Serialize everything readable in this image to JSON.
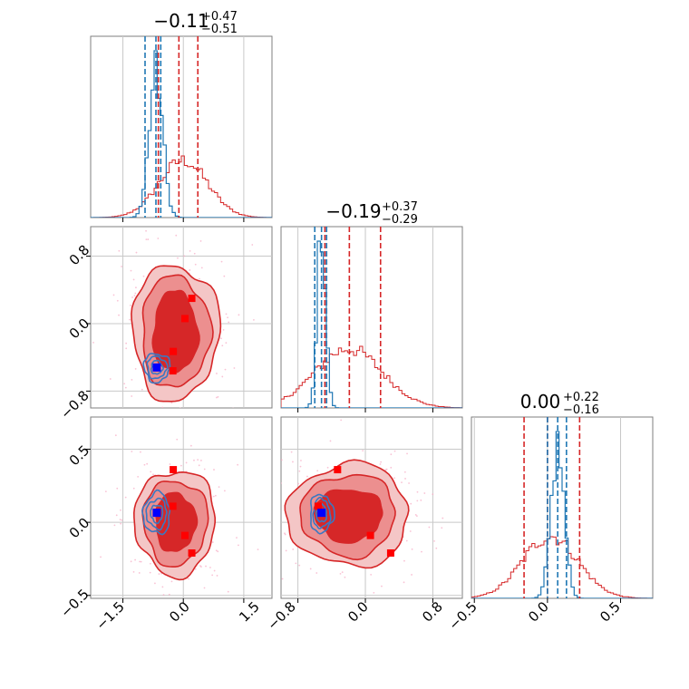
{
  "figure": {
    "titles": {
      "p0": {
        "main": "−0.11",
        "plus": "+0.47",
        "minus": "−0.51"
      },
      "p1": {
        "main": "−0.19",
        "plus": "+0.37",
        "minus": "−0.29"
      },
      "p2": {
        "main": "0.00",
        "plus": "+0.22",
        "minus": "−0.16"
      }
    },
    "ticks": {
      "x0": [
        "−1.5",
        "0.0",
        "1.5"
      ],
      "x1": [
        "−0.8",
        "0.0",
        "0.8"
      ],
      "x2": [
        "−0.5",
        "0.0",
        "0.5"
      ],
      "y1": [
        "0.8",
        "0.0",
        "−0.8"
      ],
      "y2": [
        "0.5",
        "0.0",
        "−0.5"
      ]
    }
  },
  "chart_data": {
    "type": "corner",
    "series": [
      {
        "name": "",
        "color": "#d62728",
        "style": "filled contours + step histogram"
      },
      {
        "name": "",
        "color": "#1f77b4",
        "style": "line contours + step histogram"
      }
    ],
    "parameters": [
      {
        "range": [
          -2.3,
          2.2
        ],
        "ticks": [
          -1.5,
          0.0,
          1.5
        ]
      },
      {
        "range": [
          -1.0,
          1.15
        ],
        "ticks": [
          -0.8,
          0.0,
          0.8
        ]
      },
      {
        "range": [
          -0.52,
          0.72
        ],
        "ticks": [
          -0.5,
          0.0,
          0.5
        ]
      }
    ],
    "marginals": [
      {
        "parameter": 0,
        "red": {
          "median": -0.11,
          "plus": 0.47,
          "minus": 0.51,
          "quantiles": [
            -0.62,
            -0.11,
            0.36
          ],
          "mean": 0.0,
          "sd": 0.6
        },
        "blue": {
          "quantiles": [
            -0.95,
            -0.68,
            -0.56
          ],
          "mean": -0.68,
          "sd": 0.17
        }
      },
      {
        "parameter": 1,
        "red": {
          "median": -0.19,
          "plus": 0.37,
          "minus": 0.29,
          "quantiles": [
            -0.48,
            -0.19,
            0.18
          ],
          "mean": -0.2,
          "sd": 0.4
        },
        "blue": {
          "quantiles": [
            -0.6,
            -0.52,
            -0.46
          ],
          "mean": -0.52,
          "sd": 0.05
        }
      },
      {
        "parameter": 2,
        "red": {
          "median": 0.0,
          "plus": 0.22,
          "minus": 0.16,
          "quantiles": [
            -0.16,
            0.0,
            0.22
          ],
          "mean": 0.02,
          "sd": 0.19
        },
        "blue": {
          "quantiles": [
            0.0,
            0.07,
            0.13
          ],
          "mean": 0.07,
          "sd": 0.045
        }
      }
    ],
    "markers": {
      "red_squares": [
        {
          "p0": 0.21,
          "p1": 0.3,
          "p2": -0.21
        },
        {
          "p0": 0.04,
          "p1": 0.06,
          "p2": -0.09
        },
        {
          "p0": -0.25,
          "p1": -0.33,
          "p2": 0.36
        },
        {
          "p0": -0.26,
          "p1": -0.56,
          "p2": 0.11
        }
      ],
      "blue_square": {
        "p0": -0.66,
        "p1": -0.52,
        "p2": 0.065
      }
    },
    "contours_2d": [
      {
        "x": 0,
        "y": 1,
        "red_center": [
          -0.2,
          -0.1
        ],
        "red_radii": [
          [
            0.55,
            0.48
          ],
          [
            0.85,
            0.66
          ],
          [
            1.08,
            0.8
          ]
        ],
        "blue_center": [
          -0.66,
          -0.52
        ],
        "blue_radii": [
          [
            0.14,
            0.08
          ],
          [
            0.24,
            0.13
          ],
          [
            0.32,
            0.17
          ]
        ]
      },
      {
        "x": 0,
        "y": 2,
        "red_center": [
          -0.2,
          0.0
        ],
        "red_radii": [
          [
            0.5,
            0.2
          ],
          [
            0.8,
            0.29
          ],
          [
            1.0,
            0.36
          ]
        ],
        "blue_center": [
          -0.66,
          0.06
        ],
        "blue_radii": [
          [
            0.15,
            0.06
          ],
          [
            0.25,
            0.1
          ],
          [
            0.33,
            0.14
          ]
        ]
      },
      {
        "x": 1,
        "y": 2,
        "red_center": [
          -0.2,
          0.05
        ],
        "red_radii": [
          [
            0.4,
            0.18
          ],
          [
            0.56,
            0.28
          ],
          [
            0.72,
            0.35
          ]
        ],
        "blue_center": [
          -0.52,
          0.06
        ],
        "blue_radii": [
          [
            0.06,
            0.06
          ],
          [
            0.1,
            0.1
          ],
          [
            0.14,
            0.13
          ]
        ]
      }
    ],
    "grid": true
  }
}
